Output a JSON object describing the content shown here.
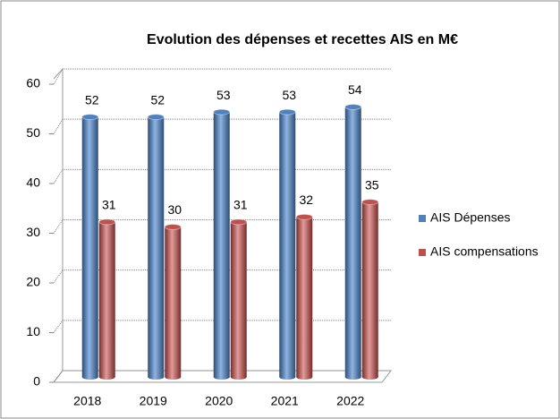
{
  "chart_data": {
    "type": "bar3d",
    "title": "Evolution des dépenses et recettes AIS en M€",
    "categories": [
      "2018",
      "2019",
      "2020",
      "2021",
      "2022"
    ],
    "series": [
      {
        "name": "AIS Dépenses",
        "color": "#4f81bd",
        "values": [
          52,
          52,
          53,
          53,
          54
        ]
      },
      {
        "name": "AIS compensations",
        "color": "#c0504d",
        "values": [
          31,
          30,
          31,
          32,
          35
        ]
      }
    ],
    "ylim": [
      0,
      60
    ],
    "yticks": [
      0,
      10,
      20,
      30,
      40,
      50,
      60
    ],
    "grid": true,
    "legend": "right"
  }
}
